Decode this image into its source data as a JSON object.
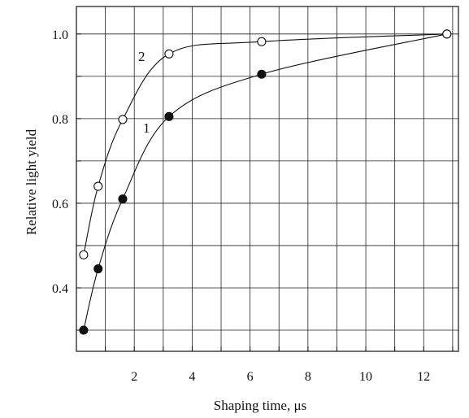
{
  "chart_data": {
    "type": "line",
    "xlabel": "Shaping time, μs",
    "ylabel": "Relative light yield",
    "xlim": [
      0,
      13.2
    ],
    "ylim": [
      0.25,
      1.065
    ],
    "xticks": [
      {
        "value": 2,
        "label": "2"
      },
      {
        "value": 4,
        "label": "4"
      },
      {
        "value": 6,
        "label": "6"
      },
      {
        "value": 8,
        "label": "8"
      },
      {
        "value": 10,
        "label": "10"
      },
      {
        "value": 12,
        "label": "12"
      }
    ],
    "yticks": [
      {
        "value": 0.4,
        "label": "0.4"
      },
      {
        "value": 0.6,
        "label": "0.6"
      },
      {
        "value": 0.8,
        "label": "0.8"
      },
      {
        "value": 1.0,
        "label": "1.0"
      }
    ],
    "grid": true,
    "series": [
      {
        "name": "1",
        "marker": "filled-circle",
        "x": [
          0.25,
          0.75,
          1.6,
          3.2,
          6.4,
          12.8
        ],
        "y": [
          0.3,
          0.445,
          0.61,
          0.805,
          0.905,
          1.0
        ]
      },
      {
        "name": "2",
        "marker": "open-circle",
        "x": [
          0.25,
          0.75,
          1.6,
          3.2,
          6.4,
          12.8
        ],
        "y": [
          0.478,
          0.64,
          0.798,
          0.953,
          0.982,
          1.0
        ]
      }
    ]
  }
}
